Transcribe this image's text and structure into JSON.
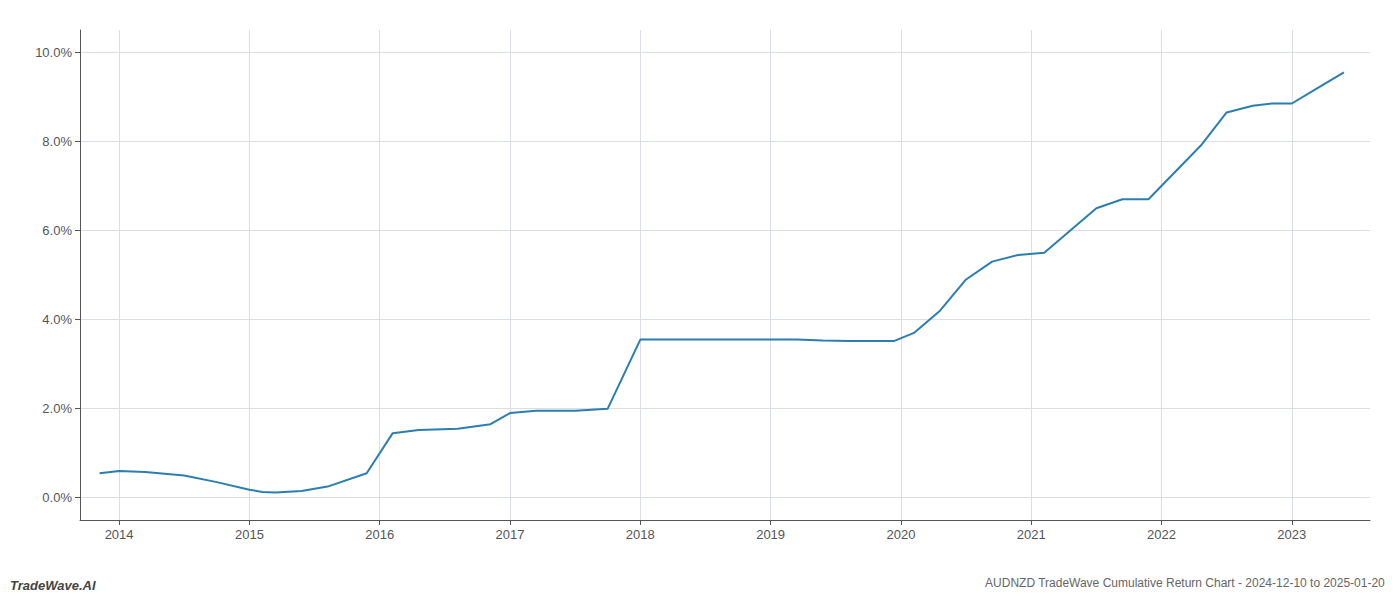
{
  "chart_data": {
    "type": "line",
    "title": "AUDNZD TradeWave Cumulative Return Chart - 2024-12-10 to 2025-01-20",
    "annotations": [
      "TradeWave.AI"
    ],
    "x": [
      2013.85,
      2014.0,
      2014.2,
      2014.5,
      2014.75,
      2015.0,
      2015.1,
      2015.2,
      2015.4,
      2015.6,
      2015.9,
      2016.1,
      2016.3,
      2016.6,
      2016.85,
      2017.0,
      2017.2,
      2017.5,
      2017.75,
      2018.0,
      2018.2,
      2018.4,
      2018.6,
      2018.85,
      2019.0,
      2019.2,
      2019.4,
      2019.6,
      2019.8,
      2019.95,
      2020.1,
      2020.3,
      2020.5,
      2020.7,
      2020.9,
      2021.1,
      2021.3,
      2021.5,
      2021.7,
      2021.9,
      2022.1,
      2022.3,
      2022.5,
      2022.7,
      2022.85,
      2023.0,
      2023.2,
      2023.4
    ],
    "values": [
      0.55,
      0.6,
      0.58,
      0.5,
      0.35,
      0.18,
      0.13,
      0.12,
      0.15,
      0.25,
      0.55,
      1.45,
      1.52,
      1.55,
      1.65,
      1.9,
      1.95,
      1.95,
      2.0,
      3.55,
      3.55,
      3.55,
      3.55,
      3.55,
      3.55,
      3.55,
      3.53,
      3.52,
      3.52,
      3.52,
      3.7,
      4.2,
      4.9,
      5.3,
      5.45,
      5.5,
      6.0,
      6.5,
      6.7,
      6.7,
      7.3,
      7.9,
      8.65,
      8.8,
      8.85,
      8.85,
      9.2,
      9.55
    ],
    "color": "#2b7eb0",
    "xlim": [
      2013.7,
      2023.6
    ],
    "xticks": [
      2014,
      2015,
      2016,
      2017,
      2018,
      2019,
      2020,
      2021,
      2022,
      2023
    ],
    "ylim": [
      -0.5,
      10.5
    ],
    "yticks": [
      {
        "value": 0.0,
        "label": "0.0%"
      },
      {
        "value": 2.0,
        "label": "2.0%"
      },
      {
        "value": 4.0,
        "label": "4.0%"
      },
      {
        "value": 6.0,
        "label": "6.0%"
      },
      {
        "value": 8.0,
        "label": "8.0%"
      },
      {
        "value": 10.0,
        "label": "10.0%"
      }
    ],
    "grid": true
  }
}
